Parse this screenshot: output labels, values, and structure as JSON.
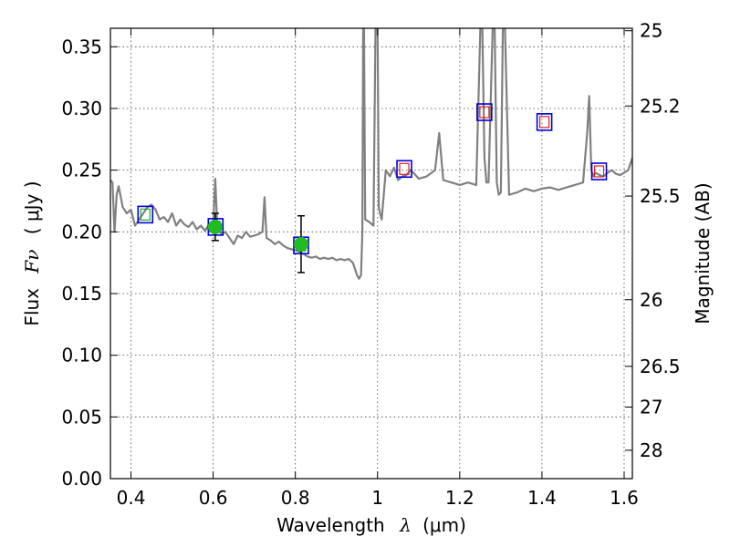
{
  "chart_data": {
    "type": "line",
    "xlabel": "Wavelength",
    "xlabel_symbol": "λ",
    "xlabel_unit": "(μm)",
    "ylabel": "Flux",
    "ylabel_symbol": "Fν",
    "ylabel_unit": "( μJy )",
    "ylabel_right": "Magnitude (AB)",
    "xlim": [
      0.35,
      1.62
    ],
    "ylim": [
      0.0,
      0.365
    ],
    "grid": true,
    "x_ticks": [
      {
        "value": 0.4,
        "label": "0.4"
      },
      {
        "value": 0.6,
        "label": "0.6"
      },
      {
        "value": 0.8,
        "label": "0.8"
      },
      {
        "value": 1.0,
        "label": "1"
      },
      {
        "value": 1.2,
        "label": "1.2"
      },
      {
        "value": 1.4,
        "label": "1.4"
      },
      {
        "value": 1.6,
        "label": "1.6"
      }
    ],
    "y_ticks": [
      {
        "value": 0.0,
        "label": "0.00"
      },
      {
        "value": 0.05,
        "label": "0.05"
      },
      {
        "value": 0.1,
        "label": "0.10"
      },
      {
        "value": 0.15,
        "label": "0.15"
      },
      {
        "value": 0.2,
        "label": "0.20"
      },
      {
        "value": 0.25,
        "label": "0.25"
      },
      {
        "value": 0.3,
        "label": "0.30"
      },
      {
        "value": 0.35,
        "label": "0.35"
      }
    ],
    "right_ticks": [
      {
        "flux": 0.363,
        "label": "25"
      },
      {
        "flux": 0.302,
        "label": "25.2"
      },
      {
        "flux": 0.229,
        "label": "25.5"
      },
      {
        "flux": 0.145,
        "label": "26"
      },
      {
        "flux": 0.091,
        "label": "26.5"
      },
      {
        "flux": 0.058,
        "label": "27"
      },
      {
        "flux": 0.023,
        "label": "28"
      }
    ],
    "colors": {
      "spectrum": "#808080",
      "observed": "#22bb22",
      "model_box": "#0000dd",
      "red_box": "#dd2222",
      "green_box": "#22aa22",
      "error_bar": "#000000"
    },
    "spectrum": {
      "name": "model spectrum",
      "x": [
        0.35,
        0.355,
        0.36,
        0.365,
        0.37,
        0.38,
        0.39,
        0.4,
        0.41,
        0.42,
        0.43,
        0.44,
        0.45,
        0.46,
        0.47,
        0.48,
        0.49,
        0.5,
        0.51,
        0.52,
        0.53,
        0.54,
        0.55,
        0.56,
        0.57,
        0.58,
        0.59,
        0.6,
        0.605,
        0.61,
        0.62,
        0.63,
        0.64,
        0.65,
        0.66,
        0.67,
        0.68,
        0.69,
        0.7,
        0.71,
        0.72,
        0.725,
        0.73,
        0.74,
        0.75,
        0.76,
        0.77,
        0.78,
        0.79,
        0.8,
        0.81,
        0.82,
        0.83,
        0.84,
        0.85,
        0.86,
        0.87,
        0.88,
        0.89,
        0.9,
        0.91,
        0.92,
        0.93,
        0.94,
        0.945,
        0.95,
        0.955,
        0.96,
        0.963,
        0.965,
        0.967,
        0.97,
        0.98,
        0.99,
        0.995,
        1.0,
        1.003,
        1.006,
        1.01,
        1.02,
        1.03,
        1.04,
        1.05,
        1.06,
        1.07,
        1.08,
        1.09,
        1.1,
        1.12,
        1.14,
        1.15,
        1.155,
        1.16,
        1.18,
        1.2,
        1.22,
        1.24,
        1.25,
        1.255,
        1.26,
        1.265,
        1.27,
        1.28,
        1.285,
        1.29,
        1.295,
        1.3,
        1.305,
        1.31,
        1.32,
        1.34,
        1.36,
        1.38,
        1.4,
        1.42,
        1.44,
        1.46,
        1.48,
        1.5,
        1.51,
        1.515,
        1.52,
        1.525,
        1.53,
        1.54,
        1.55,
        1.56,
        1.57,
        1.58,
        1.59,
        1.6,
        1.61,
        1.62
      ],
      "y": [
        0.242,
        0.24,
        0.2,
        0.23,
        0.237,
        0.22,
        0.215,
        0.218,
        0.205,
        0.21,
        0.215,
        0.22,
        0.222,
        0.218,
        0.21,
        0.212,
        0.208,
        0.215,
        0.205,
        0.21,
        0.206,
        0.204,
        0.208,
        0.202,
        0.205,
        0.201,
        0.206,
        0.205,
        0.243,
        0.204,
        0.198,
        0.2,
        0.195,
        0.19,
        0.197,
        0.195,
        0.2,
        0.196,
        0.197,
        0.198,
        0.2,
        0.228,
        0.195,
        0.193,
        0.19,
        0.192,
        0.189,
        0.187,
        0.186,
        0.185,
        0.184,
        0.182,
        0.18,
        0.179,
        0.18,
        0.178,
        0.179,
        0.178,
        0.179,
        0.177,
        0.178,
        0.177,
        0.178,
        0.175,
        0.17,
        0.165,
        0.162,
        0.165,
        0.2,
        0.365,
        0.365,
        0.21,
        0.208,
        0.205,
        0.365,
        0.365,
        0.22,
        0.215,
        0.21,
        0.25,
        0.245,
        0.252,
        0.242,
        0.245,
        0.246,
        0.25,
        0.247,
        0.243,
        0.245,
        0.25,
        0.28,
        0.26,
        0.242,
        0.24,
        0.238,
        0.24,
        0.238,
        0.365,
        0.365,
        0.26,
        0.24,
        0.24,
        0.365,
        0.365,
        0.24,
        0.23,
        0.232,
        0.365,
        0.365,
        0.23,
        0.232,
        0.235,
        0.233,
        0.235,
        0.236,
        0.234,
        0.236,
        0.238,
        0.24,
        0.28,
        0.31,
        0.25,
        0.245,
        0.248,
        0.246,
        0.245,
        0.248,
        0.25,
        0.247,
        0.246,
        0.248,
        0.25,
        0.26
      ]
    },
    "observed": [
      {
        "x": 0.605,
        "y": 0.204,
        "yerr": 0.011
      },
      {
        "x": 0.814,
        "y": 0.19,
        "yerr": 0.023
      }
    ],
    "model_photometry": [
      {
        "x": 0.435,
        "y": 0.214,
        "inner": "green"
      },
      {
        "x": 0.606,
        "y": 0.204,
        "inner": "green"
      },
      {
        "x": 0.814,
        "y": 0.189,
        "inner": "green"
      },
      {
        "x": 1.065,
        "y": 0.251,
        "inner": "red"
      },
      {
        "x": 1.26,
        "y": 0.297,
        "inner": "red"
      },
      {
        "x": 1.406,
        "y": 0.289,
        "inner": "red"
      },
      {
        "x": 1.539,
        "y": 0.249,
        "inner": "red"
      }
    ]
  }
}
